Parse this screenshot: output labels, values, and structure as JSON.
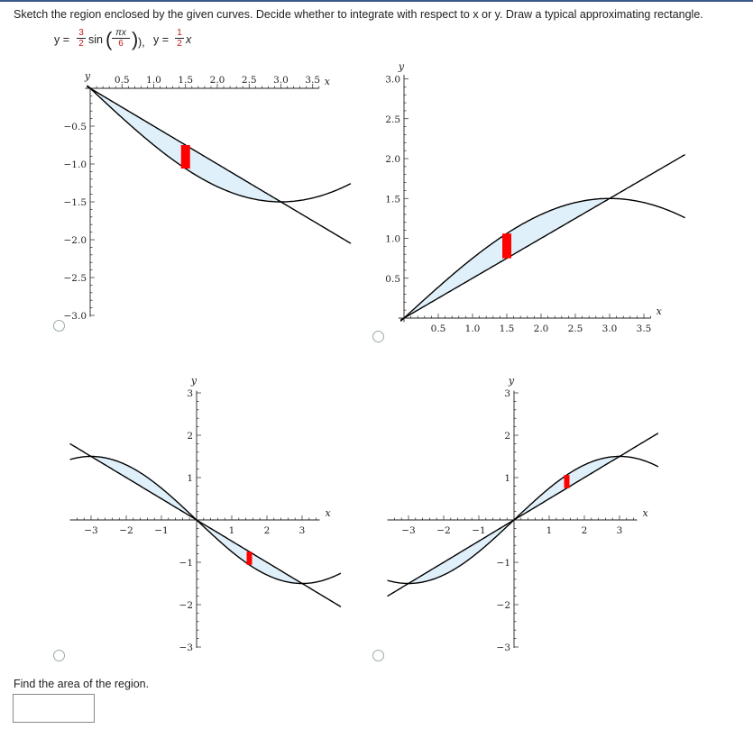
{
  "problem": {
    "instructions": "Sketch the region enclosed by the given curves. Decide whether to integrate with respect to x or y. Draw a typical approximating rectangle.",
    "curve1_prefix": "y =",
    "curve1_coef_num": "3",
    "curve1_coef_den": "2",
    "curve1_func": "sin",
    "curve1_arg_num": "πx",
    "curve1_arg_den": "6",
    "curve1_suffix": "),",
    "curve2_prefix": "y =",
    "curve2_coef_num": "1",
    "curve2_coef_den": "2",
    "curve2_var": "x"
  },
  "question": {
    "text": "Find the area of the region.",
    "answer_value": ""
  },
  "colors": {
    "region": "#dff0fb",
    "rect": "#ff0000",
    "curve": "#000000",
    "link": "#c41a1a"
  },
  "chart_data": [
    {
      "type": "line",
      "option": "top-left",
      "xlabel": "x",
      "ylabel": "y",
      "xlim": [
        0,
        3.6
      ],
      "ylim": [
        -3.0,
        0
      ],
      "xticks": [
        "0.5",
        "1.0",
        "1.5",
        "2.0",
        "2.5",
        "3.0",
        "3.5"
      ],
      "yticks": [
        "-0.5",
        "-1.0",
        "-1.5",
        "-2.0",
        "-2.5",
        "-3.0"
      ],
      "curves": [
        "-(3/2)sin(πx/6)",
        "-(1/2)x"
      ],
      "region": [
        0,
        3
      ],
      "rectangle": {
        "x": 1.5,
        "y_top": -0.75,
        "y_bottom": -1.06
      }
    },
    {
      "type": "line",
      "option": "top-right",
      "xlabel": "x",
      "ylabel": "y",
      "xlim": [
        0,
        3.6
      ],
      "ylim": [
        0,
        3.0
      ],
      "xticks": [
        "0.5",
        "1.0",
        "1.5",
        "2.0",
        "2.5",
        "3.0",
        "3.5"
      ],
      "yticks": [
        "0.5",
        "1.0",
        "1.5",
        "2.0",
        "2.5",
        "3.0"
      ],
      "curves": [
        "(3/2)sin(πx/6)",
        "(1/2)x"
      ],
      "region": [
        0,
        3
      ],
      "rectangle": {
        "x": 1.5,
        "y_top": 1.06,
        "y_bottom": 0.75
      }
    },
    {
      "type": "line",
      "option": "bottom-left",
      "xlabel": "x",
      "ylabel": "y",
      "xlim": [
        -3.5,
        3.5
      ],
      "ylim": [
        -3,
        3
      ],
      "xticks": [
        "-3",
        "-2",
        "-1",
        "1",
        "2",
        "3"
      ],
      "yticks": [
        "3",
        "2",
        "1",
        "-1",
        "-2",
        "-3"
      ],
      "curves": [
        "-(3/2)sin(πx/6)",
        "-(1/2)x"
      ],
      "region": [
        -3,
        3
      ],
      "rectangle": {
        "x": 1.5,
        "y_top": -0.75,
        "y_bottom": -1.06
      }
    },
    {
      "type": "line",
      "option": "bottom-right",
      "xlabel": "x",
      "ylabel": "y",
      "xlim": [
        -3.5,
        3.5
      ],
      "ylim": [
        -3,
        3
      ],
      "xticks": [
        "-3",
        "-2",
        "-1",
        "1",
        "2",
        "3"
      ],
      "yticks": [
        "3",
        "2",
        "1",
        "-1",
        "-2",
        "-3"
      ],
      "curves": [
        "(3/2)sin(πx/6)",
        "(1/2)x"
      ],
      "region": [
        -3,
        3
      ],
      "rectangle": {
        "x": 1.5,
        "y_top": 1.06,
        "y_bottom": 0.75
      }
    }
  ]
}
